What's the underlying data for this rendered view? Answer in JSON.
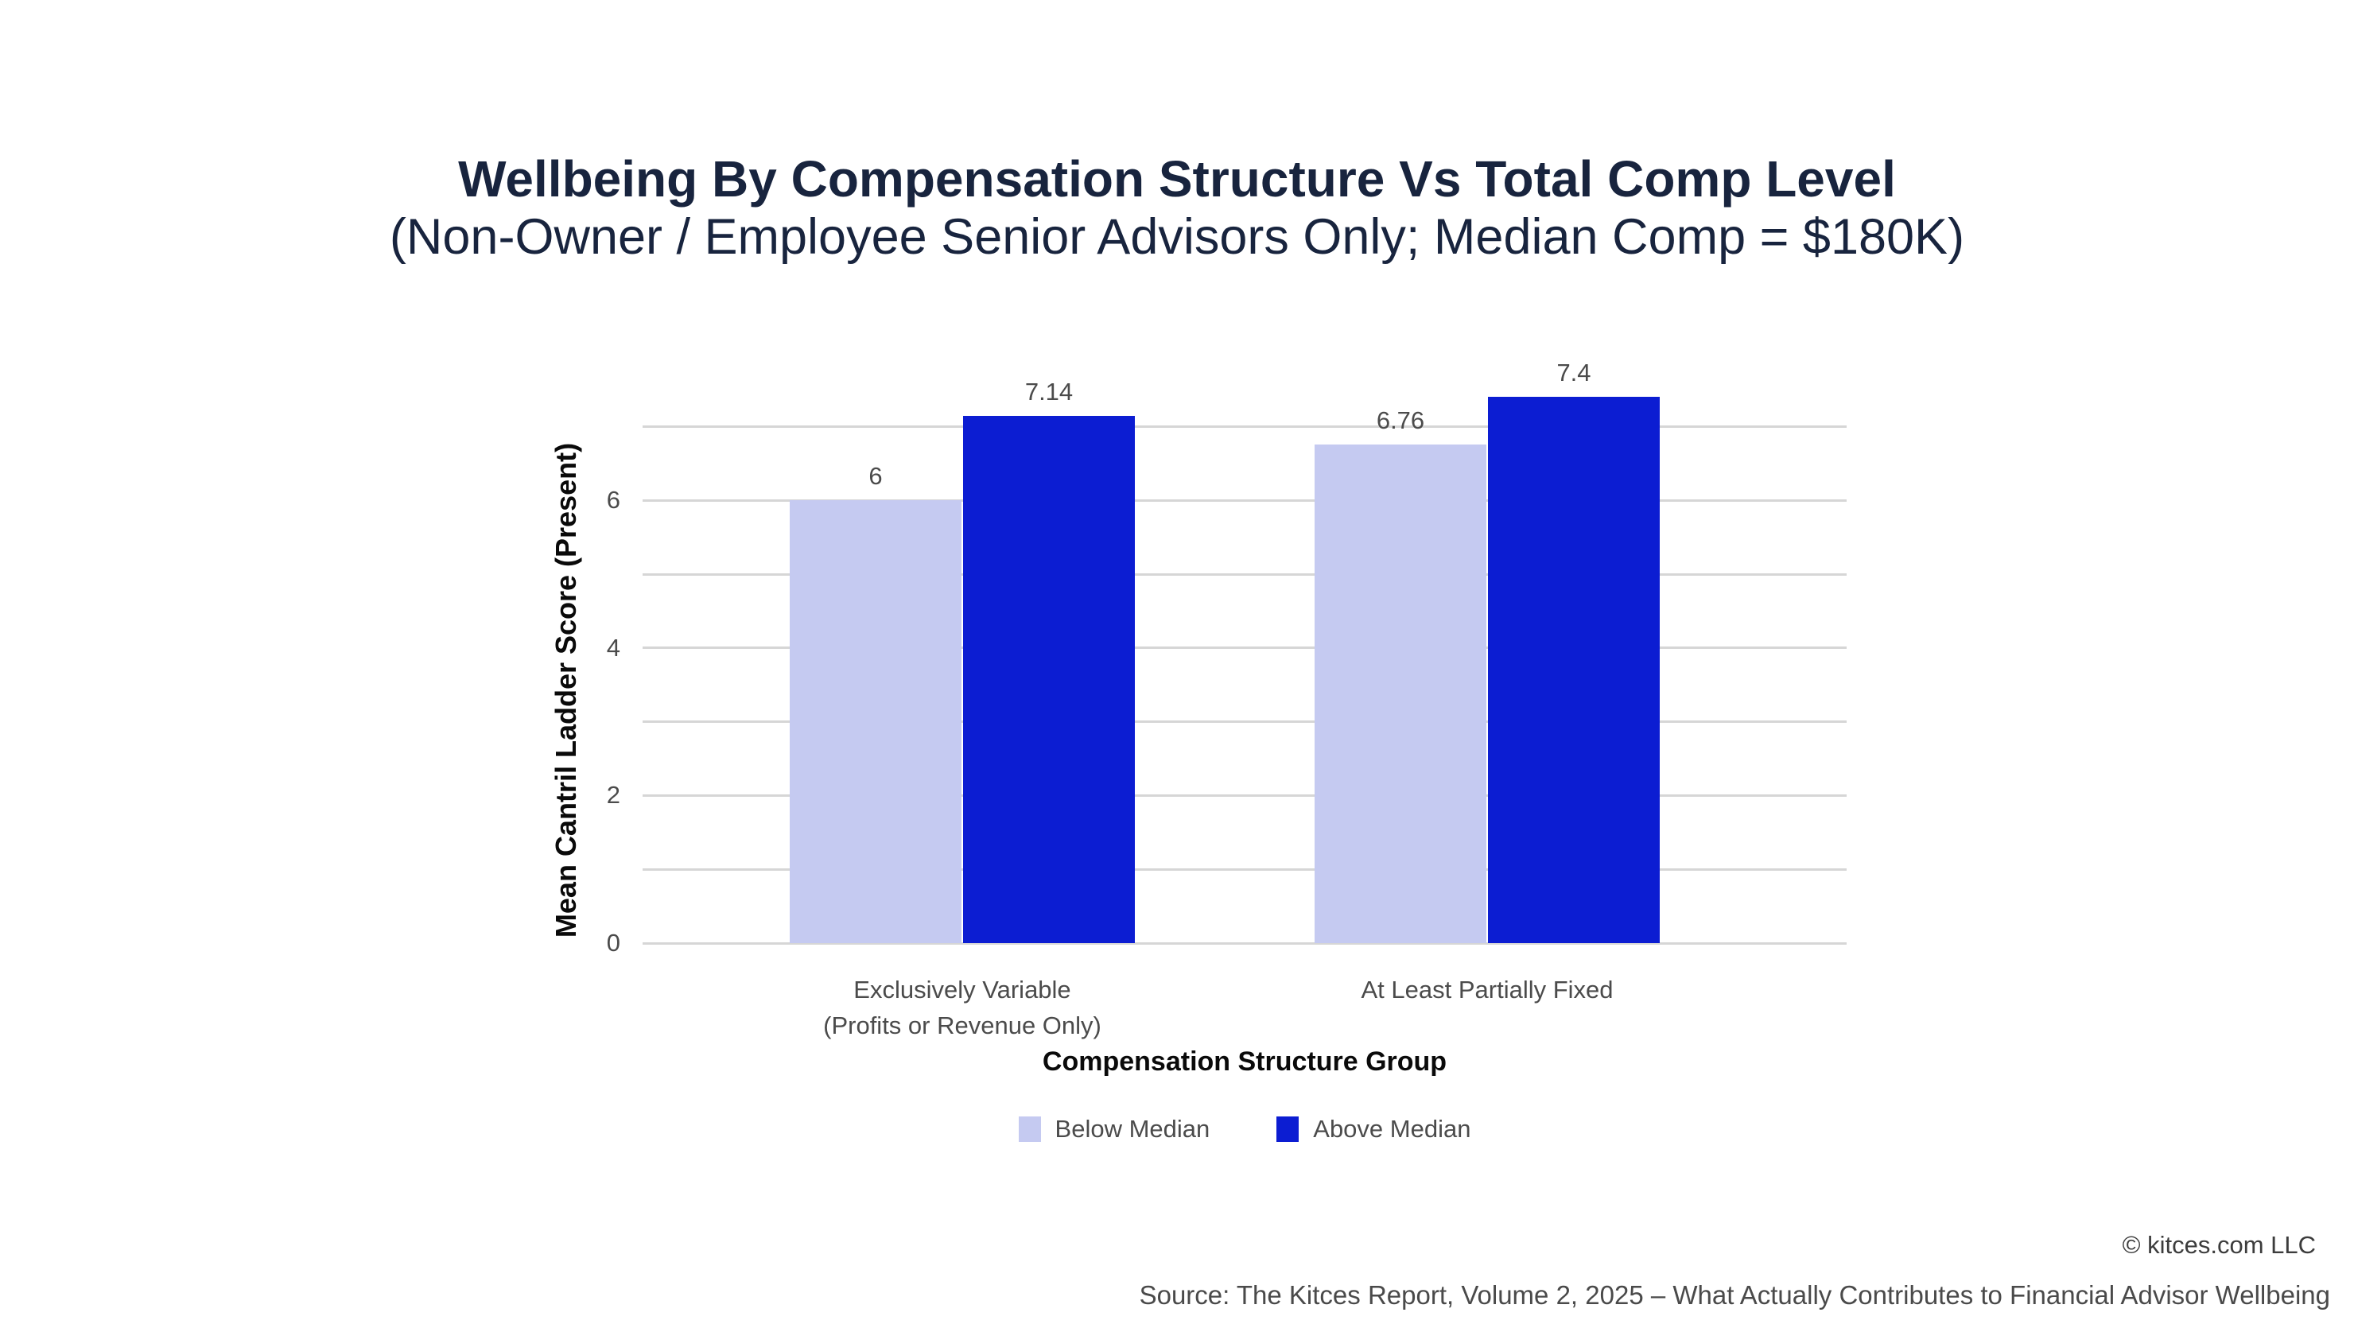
{
  "title": "Wellbeing By Compensation Structure Vs Total Comp Level",
  "subtitle": "(Non-Owner / Employee Senior Advisors Only; Median Comp = $180K)",
  "chart_data": {
    "type": "bar",
    "title": "Wellbeing By Compensation Structure Vs Total Comp Level",
    "subtitle": "(Non-Owner / Employee Senior Advisors Only; Median Comp = $180K)",
    "categories": [
      "Exclusively Variable\n(Profits or Revenue Only)",
      "At Least Partially Fixed"
    ],
    "series": [
      {
        "name": "Below Median",
        "color": "#c5caf1",
        "values": [
          6,
          6.76
        ],
        "labels": [
          "6",
          "6.76"
        ]
      },
      {
        "name": "Above Median",
        "color": "#0c1dd2",
        "values": [
          7.14,
          7.4
        ],
        "labels": [
          "7.14",
          "7.4"
        ]
      }
    ],
    "xlabel": "Compensation Structure Group",
    "ylabel": "Mean Cantril Ladder Score (Present)",
    "yticks": [
      0,
      2,
      4,
      6
    ],
    "ylim": [
      0,
      7.4
    ],
    "gridline_step": 1,
    "grid": true,
    "legend_position": "bottom"
  },
  "footer": {
    "copyright": "© kitces.com LLC",
    "source": "Source: The Kitces Report, Volume 2, 2025 – What Actually Contributes to Financial Advisor Wellbeing"
  },
  "colors": {
    "title_text": "#18243e",
    "gridline": "#d6d6d6",
    "tick_text": "#4b4b4b",
    "axis_title_text": "#0a0a0a",
    "value_label_text": "#4b4b4b",
    "below_median": "#c5caf1",
    "above_median": "#0c1dd2"
  }
}
